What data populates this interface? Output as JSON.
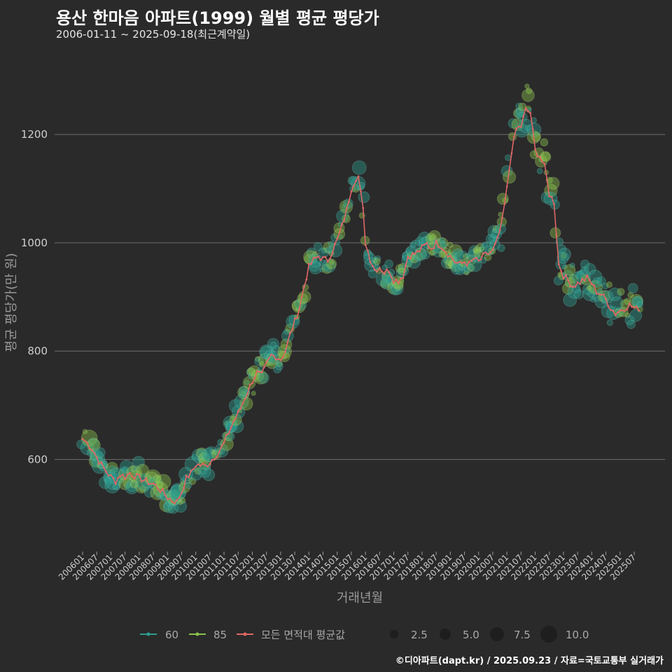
{
  "header": {
    "title": "용산 한마음 아파트(1999) 월별 평균 평당가",
    "subtitle": "2006-01-11 ~ 2025-09-18(최근계약일)"
  },
  "footer": {
    "credit": "©디아파트(dapt.kr) / 2025.09.23 / 자료=국토교통부 실거래가"
  },
  "colors": {
    "background": "#2a2a2a",
    "grid": "#6e6e6e",
    "area60": "#2a9d8f",
    "area85": "#8bc34a",
    "average": "#e06666"
  },
  "chart_data": {
    "type": "scatter",
    "title": "용산 한마음 아파트(1999) 월별 평균 평당가",
    "xlabel": "거래년월",
    "ylabel": "평균 평당가(만 원)",
    "ylim": [
      430,
      1350
    ],
    "yticks": [
      600,
      800,
      1000,
      1200
    ],
    "xticks": [
      "200601",
      "200607",
      "200701",
      "200707",
      "200801",
      "200807",
      "200901",
      "200907",
      "201001",
      "201007",
      "201101",
      "201107",
      "201201",
      "201207",
      "201301",
      "201307",
      "201401",
      "201407",
      "201501",
      "201507",
      "201601",
      "201607",
      "201701",
      "201707",
      "201801",
      "201807",
      "201901",
      "201907",
      "202001",
      "202007",
      "202101",
      "202107",
      "202201",
      "202207",
      "202301",
      "202307",
      "202401",
      "202407",
      "202501",
      "202507"
    ],
    "x_start": "200601",
    "x_end": "202509",
    "average_series": {
      "name": "모든 면적대 평균값",
      "anchors": [
        [
          "200601",
          638
        ],
        [
          "200603",
          630
        ],
        [
          "200605",
          620
        ],
        [
          "200607",
          604
        ],
        [
          "200609",
          590
        ],
        [
          "200611",
          578
        ],
        [
          "200701",
          568
        ],
        [
          "200703",
          560
        ],
        [
          "200705",
          572
        ],
        [
          "200707",
          568
        ],
        [
          "200709",
          575
        ],
        [
          "200711",
          570
        ],
        [
          "200801",
          566
        ],
        [
          "200803",
          562
        ],
        [
          "200805",
          558
        ],
        [
          "200807",
          555
        ],
        [
          "200809",
          548
        ],
        [
          "200811",
          540
        ],
        [
          "200901",
          530
        ],
        [
          "200903",
          524
        ],
        [
          "200905",
          522
        ],
        [
          "200907",
          540
        ],
        [
          "200909",
          565
        ],
        [
          "200911",
          575
        ],
        [
          "201001",
          590
        ],
        [
          "201003",
          590
        ],
        [
          "201005",
          588
        ],
        [
          "201007",
          595
        ],
        [
          "201009",
          605
        ],
        [
          "201011",
          615
        ],
        [
          "201101",
          630
        ],
        [
          "201103",
          650
        ],
        [
          "201105",
          670
        ],
        [
          "201107",
          685
        ],
        [
          "201109",
          705
        ],
        [
          "201111",
          725
        ],
        [
          "201201",
          745
        ],
        [
          "201203",
          760
        ],
        [
          "201205",
          755
        ],
        [
          "201207",
          775
        ],
        [
          "201209",
          792
        ],
        [
          "201211",
          790
        ],
        [
          "201301",
          785
        ],
        [
          "201303",
          800
        ],
        [
          "201305",
          830
        ],
        [
          "201307",
          855
        ],
        [
          "201309",
          880
        ],
        [
          "201311",
          920
        ],
        [
          "201401",
          955
        ],
        [
          "201403",
          968
        ],
        [
          "201405",
          975
        ],
        [
          "201407",
          970
        ],
        [
          "201409",
          968
        ],
        [
          "201411",
          985
        ],
        [
          "201501",
          1005
        ],
        [
          "201503",
          1030
        ],
        [
          "201505",
          1060
        ],
        [
          "201507",
          1100
        ],
        [
          "201509",
          1120
        ],
        [
          "201510",
          1122
        ],
        [
          "201512",
          1060
        ],
        [
          "201601",
          1000
        ],
        [
          "201603",
          970
        ],
        [
          "201605",
          950
        ],
        [
          "201607",
          955
        ],
        [
          "201609",
          945
        ],
        [
          "201611",
          950
        ],
        [
          "201701",
          932
        ],
        [
          "201703",
          930
        ],
        [
          "201705",
          940
        ],
        [
          "201707",
          975
        ],
        [
          "201709",
          978
        ],
        [
          "201711",
          982
        ],
        [
          "201801",
          990
        ],
        [
          "201803",
          998
        ],
        [
          "201805",
          990
        ],
        [
          "201807",
          1000
        ],
        [
          "201809",
          995
        ],
        [
          "201811",
          985
        ],
        [
          "201901",
          975
        ],
        [
          "201903",
          965
        ],
        [
          "201905",
          960
        ],
        [
          "201907",
          965
        ],
        [
          "201909",
          960
        ],
        [
          "201911",
          970
        ],
        [
          "202001",
          965
        ],
        [
          "202003",
          975
        ],
        [
          "202005",
          980
        ],
        [
          "202007",
          985
        ],
        [
          "202009",
          1005
        ],
        [
          "202011",
          1040
        ],
        [
          "202101",
          1100
        ],
        [
          "202103",
          1170
        ],
        [
          "202105",
          1210
        ],
        [
          "202107",
          1215
        ],
        [
          "202109",
          1245
        ],
        [
          "202111",
          1240
        ],
        [
          "202201",
          1170
        ],
        [
          "202203",
          1160
        ],
        [
          "202205",
          1140
        ],
        [
          "202207",
          1090
        ],
        [
          "202209",
          1075
        ],
        [
          "202211",
          960
        ],
        [
          "202301",
          940
        ],
        [
          "202303",
          930
        ],
        [
          "202305",
          920
        ],
        [
          "202307",
          925
        ],
        [
          "202309",
          930
        ],
        [
          "202311",
          935
        ],
        [
          "202401",
          925
        ],
        [
          "202403",
          910
        ],
        [
          "202405",
          905
        ],
        [
          "202407",
          895
        ],
        [
          "202409",
          880
        ],
        [
          "202411",
          870
        ],
        [
          "202501",
          875
        ],
        [
          "202503",
          880
        ],
        [
          "202505",
          885
        ],
        [
          "202507",
          880
        ],
        [
          "202509",
          875
        ]
      ]
    },
    "series": [
      {
        "name": "60",
        "color": "#2a9d8f"
      },
      {
        "name": "85",
        "color": "#8bc34a"
      },
      {
        "name": "모든 면적대 평균값",
        "color": "#e06666"
      }
    ],
    "size_legend": {
      "values": [
        "2.5",
        "5.0",
        "7.5",
        "10.0"
      ]
    }
  }
}
